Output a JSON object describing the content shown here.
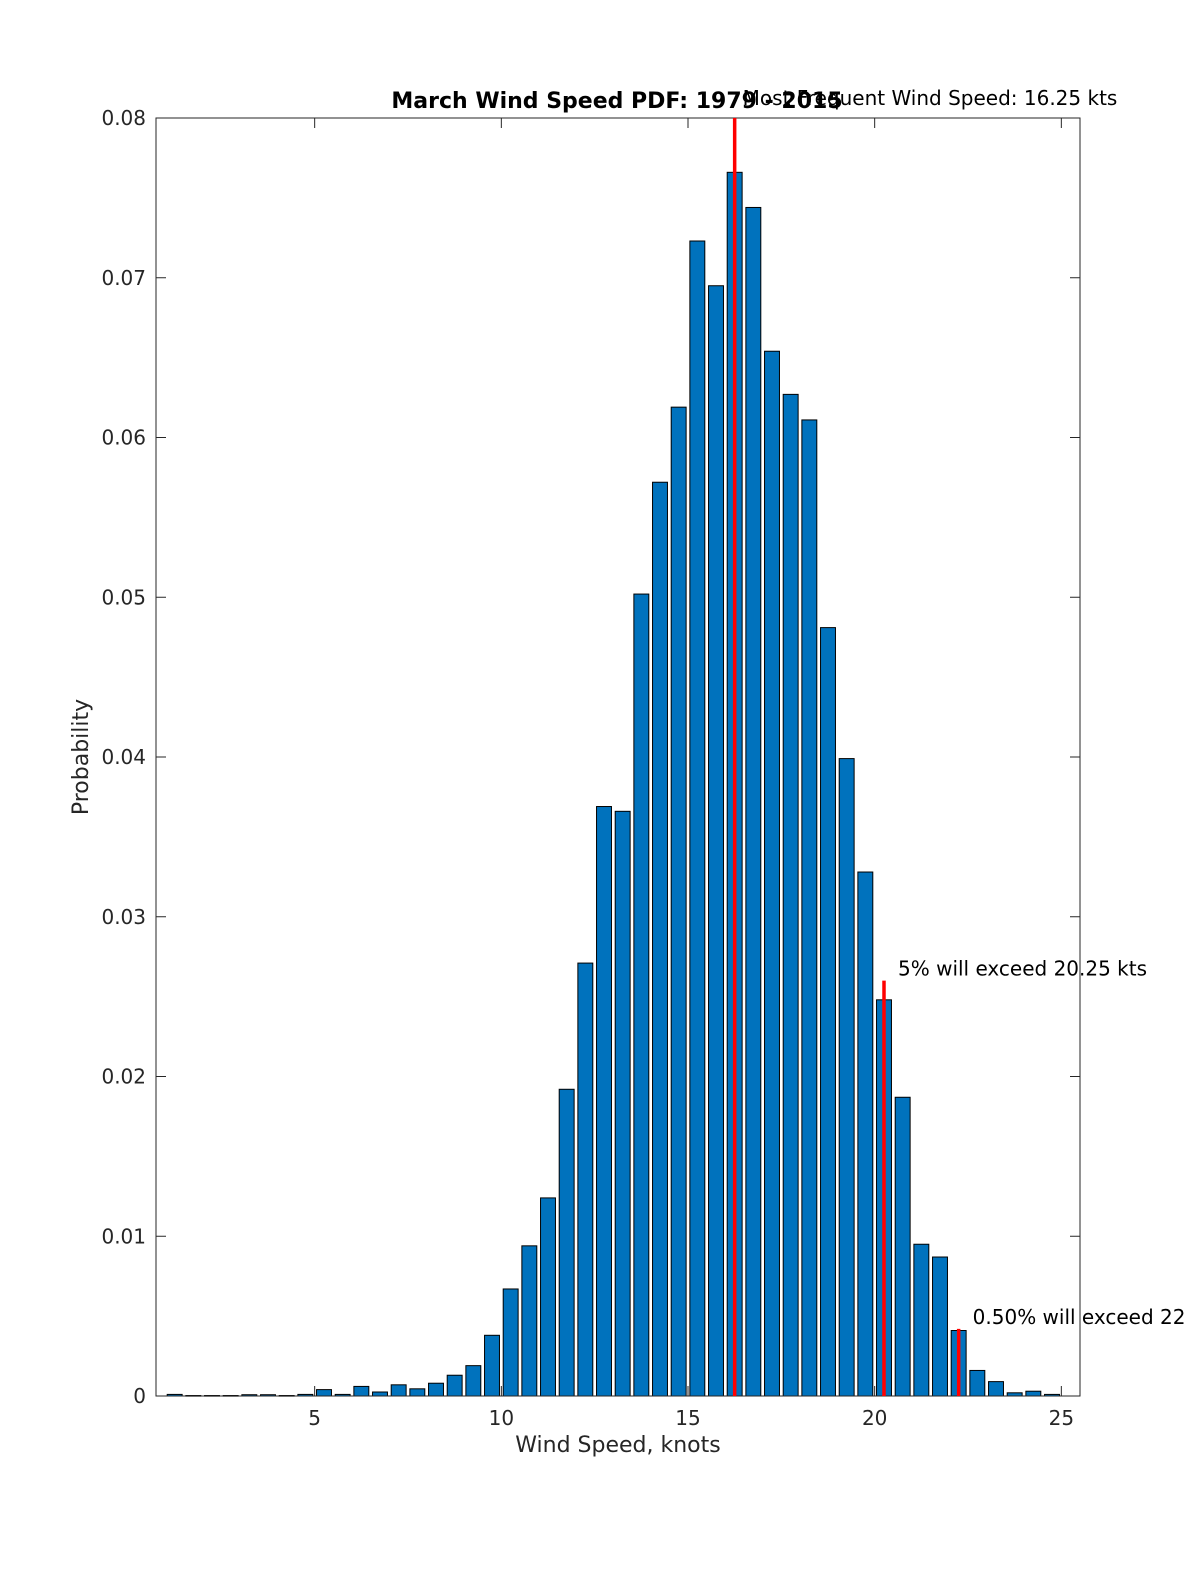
{
  "chart_data": {
    "type": "bar",
    "title": "March Wind Speed PDF: 1979 - 2015",
    "xlabel": "Wind Speed, knots",
    "ylabel": "Probability",
    "xlim": [
      0.75,
      25.5
    ],
    "ylim": [
      0,
      0.08
    ],
    "xticks": [
      5,
      10,
      15,
      20,
      25
    ],
    "yticks": [
      0,
      0.01,
      0.02,
      0.03,
      0.04,
      0.05,
      0.06,
      0.07,
      0.08
    ],
    "ytick_labels": [
      "0",
      "0.01",
      "0.02",
      "0.03",
      "0.04",
      "0.05",
      "0.06",
      "0.07",
      "0.08"
    ],
    "grid": false,
    "bar_color": "#0072BD",
    "marker_color": "#FF0000",
    "x": [
      1.25,
      1.75,
      2.25,
      2.75,
      3.25,
      3.75,
      4.25,
      4.75,
      5.25,
      5.75,
      6.25,
      6.75,
      7.25,
      7.75,
      8.25,
      8.75,
      9.25,
      9.75,
      10.25,
      10.75,
      11.25,
      11.75,
      12.25,
      12.75,
      13.25,
      13.75,
      14.25,
      14.75,
      15.25,
      15.75,
      16.25,
      16.75,
      17.25,
      17.75,
      18.25,
      18.75,
      19.25,
      19.75,
      20.25,
      20.75,
      21.25,
      21.75,
      22.25,
      22.75,
      23.25,
      23.75,
      24.25,
      24.75
    ],
    "values": [
      0.0001,
      3e-05,
      3e-05,
      3e-05,
      8e-05,
      8e-05,
      3e-05,
      0.0001,
      0.0004,
      0.0001,
      0.0006,
      0.00025,
      0.0007,
      0.00045,
      0.0008,
      0.0013,
      0.0019,
      0.0038,
      0.0067,
      0.0094,
      0.0124,
      0.0192,
      0.0271,
      0.0369,
      0.0366,
      0.0502,
      0.0572,
      0.0619,
      0.0723,
      0.0695,
      0.0766,
      0.0744,
      0.0654,
      0.0627,
      0.0611,
      0.0481,
      0.0399,
      0.0328,
      0.0248,
      0.0187,
      0.0095,
      0.0087,
      0.0041,
      0.0016,
      0.0009,
      0.0002,
      0.0003,
      0.0001
    ],
    "markers": [
      {
        "x": 16.25,
        "y_top": 0.08,
        "label": "Most Frequent Wind Speed: 16.25 kts"
      },
      {
        "x": 20.25,
        "y_top": 0.026,
        "label": "5% will exceed 20.25 kts"
      },
      {
        "x": 22.25,
        "y_top": 0.0042,
        "label": "0.50% will exceed 22"
      }
    ]
  }
}
